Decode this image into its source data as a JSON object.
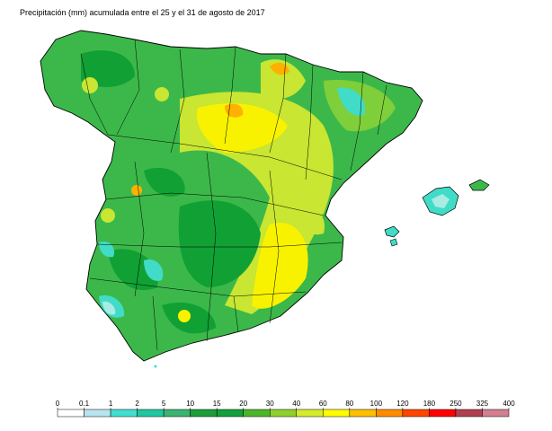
{
  "title": "Precipitación (mm) acumulada entre el 25 y el 31 de agosto de 2017",
  "legend": {
    "ticks": [
      "0",
      "0.1",
      "1",
      "2",
      "5",
      "10",
      "15",
      "20",
      "30",
      "40",
      "60",
      "80",
      "100",
      "120",
      "180",
      "250",
      "325",
      "400"
    ],
    "colors": [
      "#ffffff",
      "#b8e4ef",
      "#40e0d0",
      "#20c7a0",
      "#3cb371",
      "#1e9e3a",
      "#14a03c",
      "#4cb52a",
      "#8fd12a",
      "#d6ec2a",
      "#fffc00",
      "#ffc000",
      "#ff8c00",
      "#ff4500",
      "#ff0000",
      "#b04050",
      "#d08090",
      "#f0c8d0"
    ]
  },
  "map": {
    "palette": {
      "dark_green": "#11a034",
      "green": "#3cb84a",
      "light_green": "#7fcf3a",
      "yellow_green": "#c8e632",
      "yellow": "#f8f200",
      "orange": "#ffb000",
      "cyan": "#40dcc8",
      "light_cyan": "#a8ece4",
      "sea": "#ffffff"
    }
  }
}
